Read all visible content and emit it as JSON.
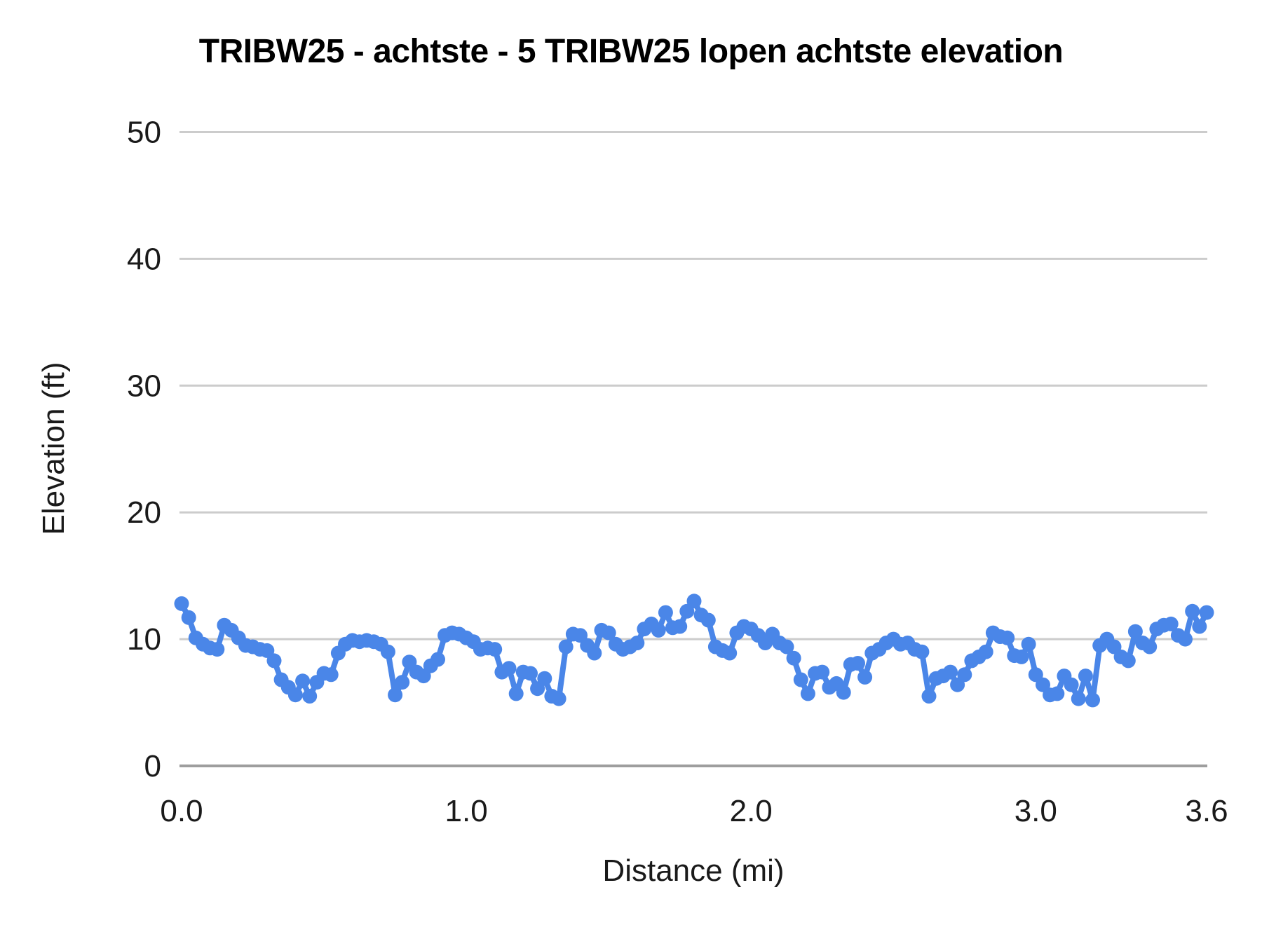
{
  "colors": {
    "series": "#4a86e8",
    "gridline": "#cccccc",
    "axis_line": "#9e9e9e",
    "text": "#1a1a1a",
    "title_text": "#000000",
    "background": "#ffffff"
  },
  "chart_data": {
    "type": "line",
    "title": "TRIBW25 - achtste - 5 TRIBW25 lopen achtste elevation",
    "xlabel": "Distance (mi)",
    "ylabel": "Elevation (ft)",
    "xlim": [
      0,
      3.6
    ],
    "ylim": [
      0,
      50
    ],
    "grid": true,
    "legend_position": "none",
    "marker_style": "filled-circle-with-line",
    "x_ticks": [
      "0.0",
      "1.0",
      "2.0",
      "3.0",
      "3.6"
    ],
    "x_tick_values": [
      0,
      1,
      2,
      3,
      3.6
    ],
    "y_ticks": [
      "0",
      "10",
      "20",
      "30",
      "40",
      "50"
    ],
    "y_tick_values": [
      0,
      10,
      20,
      30,
      40,
      50
    ],
    "x_start": 0,
    "x_step": 0.025,
    "series": [
      {
        "name": "elevation",
        "color": "#4a86e8",
        "values": [
          12.8,
          11.7,
          10.1,
          9.6,
          9.3,
          9.2,
          11.1,
          10.7,
          10.1,
          9.5,
          9.4,
          9.2,
          9.1,
          8.3,
          6.8,
          6.2,
          5.6,
          6.7,
          5.5,
          6.6,
          7.3,
          7.2,
          8.9,
          9.6,
          9.9,
          9.8,
          9.9,
          9.8,
          9.6,
          9.0,
          5.6,
          6.6,
          8.2,
          7.4,
          7.1,
          7.9,
          8.4,
          10.3,
          10.5,
          10.4,
          10.1,
          9.8,
          9.2,
          9.3,
          9.2,
          7.4,
          7.7,
          5.7,
          7.4,
          7.3,
          6.1,
          6.9,
          5.5,
          5.3,
          9.4,
          10.4,
          10.3,
          9.5,
          8.9,
          10.7,
          10.5,
          9.6,
          9.2,
          9.4,
          9.7,
          10.8,
          11.2,
          10.7,
          12.1,
          10.9,
          11.0,
          12.2,
          13.0,
          11.9,
          11.5,
          9.4,
          9.1,
          8.9,
          10.5,
          11.0,
          10.8,
          10.3,
          9.7,
          10.4,
          9.7,
          9.4,
          8.5,
          6.8,
          5.7,
          7.3,
          7.4,
          6.2,
          6.5,
          5.8,
          8.0,
          8.1,
          7.0,
          8.9,
          9.2,
          9.7,
          10.0,
          9.6,
          9.7,
          9.2,
          9.0,
          5.5,
          6.9,
          7.1,
          7.4,
          6.4,
          7.2,
          8.3,
          8.6,
          9.0,
          10.5,
          10.2,
          10.1,
          8.7,
          8.6,
          9.6,
          7.2,
          6.4,
          5.6,
          5.7,
          7.1,
          6.4,
          5.3,
          7.1,
          5.2,
          9.5,
          10.0,
          9.4,
          8.6,
          8.3,
          10.6,
          9.7,
          9.4,
          10.8,
          11.1,
          11.2,
          10.3,
          10.0,
          12.2,
          11.0,
          12.1
        ]
      }
    ]
  }
}
